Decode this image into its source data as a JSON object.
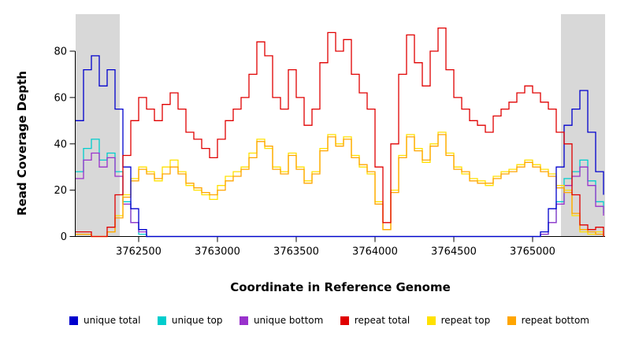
{
  "chart_data": {
    "type": "line",
    "title": "",
    "xlabel": "Coordinate in Reference Genome",
    "ylabel": "Read Coverage Depth",
    "xlim": [
      3762100,
      3765460
    ],
    "ylim": [
      0,
      92
    ],
    "x_ticks": [
      3762500,
      3763000,
      3763500,
      3764000,
      3764500,
      3765000
    ],
    "y_ticks": [
      0,
      20,
      40,
      60,
      80
    ],
    "grid": false,
    "legend_position": "bottom",
    "shaded_regions": [
      {
        "x0": 3762100,
        "x1": 3762380,
        "color": "#d8d8d8"
      },
      {
        "x0": 3765180,
        "x1": 3765460,
        "color": "#d8d8d8"
      }
    ],
    "x_start": 3762100,
    "x_step": 50,
    "series": [
      {
        "name": "unique total",
        "color": "#0000cd",
        "values": [
          50,
          72,
          78,
          65,
          72,
          55,
          30,
          12,
          3,
          0,
          0,
          0,
          0,
          0,
          0,
          0,
          0,
          0,
          0,
          0,
          0,
          0,
          0,
          0,
          0,
          0,
          0,
          0,
          0,
          0,
          0,
          0,
          0,
          0,
          0,
          0,
          0,
          0,
          0,
          0,
          0,
          0,
          0,
          0,
          0,
          0,
          0,
          0,
          0,
          0,
          0,
          0,
          0,
          0,
          0,
          0,
          0,
          0,
          0,
          2,
          12,
          30,
          48,
          55,
          63,
          45,
          28,
          18
        ]
      },
      {
        "name": "unique top",
        "color": "#00cdcd",
        "values": [
          28,
          38,
          42,
          33,
          36,
          28,
          15,
          6,
          1,
          0,
          0,
          0,
          0,
          0,
          0,
          0,
          0,
          0,
          0,
          0,
          0,
          0,
          0,
          0,
          0,
          0,
          0,
          0,
          0,
          0,
          0,
          0,
          0,
          0,
          0,
          0,
          0,
          0,
          0,
          0,
          0,
          0,
          0,
          0,
          0,
          0,
          0,
          0,
          0,
          0,
          0,
          0,
          0,
          0,
          0,
          0,
          0,
          0,
          0,
          1,
          6,
          15,
          25,
          28,
          33,
          24,
          15,
          10
        ]
      },
      {
        "name": "unique bottom",
        "color": "#9932cc",
        "values": [
          25,
          33,
          36,
          30,
          34,
          26,
          14,
          6,
          2,
          0,
          0,
          0,
          0,
          0,
          0,
          0,
          0,
          0,
          0,
          0,
          0,
          0,
          0,
          0,
          0,
          0,
          0,
          0,
          0,
          0,
          0,
          0,
          0,
          0,
          0,
          0,
          0,
          0,
          0,
          0,
          0,
          0,
          0,
          0,
          0,
          0,
          0,
          0,
          0,
          0,
          0,
          0,
          0,
          0,
          0,
          0,
          0,
          0,
          0,
          1,
          6,
          14,
          22,
          26,
          30,
          22,
          13,
          9
        ]
      },
      {
        "name": "repeat total",
        "color": "#e00000",
        "values": [
          2,
          2,
          0,
          0,
          4,
          18,
          35,
          50,
          60,
          55,
          50,
          57,
          62,
          55,
          45,
          42,
          38,
          34,
          42,
          50,
          55,
          60,
          70,
          84,
          78,
          60,
          55,
          72,
          60,
          48,
          55,
          75,
          88,
          80,
          85,
          70,
          62,
          55,
          30,
          6,
          40,
          70,
          87,
          75,
          65,
          80,
          90,
          72,
          60,
          55,
          50,
          48,
          45,
          52,
          55,
          58,
          62,
          65,
          62,
          58,
          55,
          45,
          40,
          18,
          5,
          3,
          4,
          0
        ]
      },
      {
        "name": "repeat top",
        "color": "#ffe100",
        "values": [
          1,
          1,
          0,
          0,
          2,
          9,
          18,
          25,
          30,
          28,
          24,
          30,
          33,
          28,
          22,
          20,
          18,
          16,
          22,
          26,
          28,
          30,
          36,
          42,
          38,
          30,
          28,
          36,
          30,
          24,
          28,
          38,
          44,
          40,
          43,
          35,
          30,
          27,
          15,
          3,
          20,
          35,
          44,
          38,
          32,
          40,
          45,
          36,
          30,
          27,
          25,
          24,
          22,
          26,
          28,
          29,
          31,
          33,
          31,
          29,
          27,
          22,
          20,
          9,
          2,
          1,
          2,
          0
        ]
      },
      {
        "name": "repeat bottom",
        "color": "#ffa500",
        "values": [
          1,
          1,
          0,
          0,
          2,
          8,
          17,
          24,
          29,
          27,
          25,
          27,
          30,
          27,
          23,
          21,
          19,
          18,
          20,
          24,
          26,
          29,
          34,
          41,
          39,
          29,
          27,
          35,
          29,
          23,
          27,
          37,
          43,
          39,
          42,
          34,
          31,
          28,
          14,
          3,
          19,
          34,
          43,
          37,
          33,
          39,
          44,
          35,
          29,
          28,
          24,
          23,
          23,
          25,
          27,
          28,
          30,
          32,
          30,
          28,
          26,
          21,
          19,
          10,
          3,
          2,
          1,
          0
        ]
      }
    ]
  }
}
